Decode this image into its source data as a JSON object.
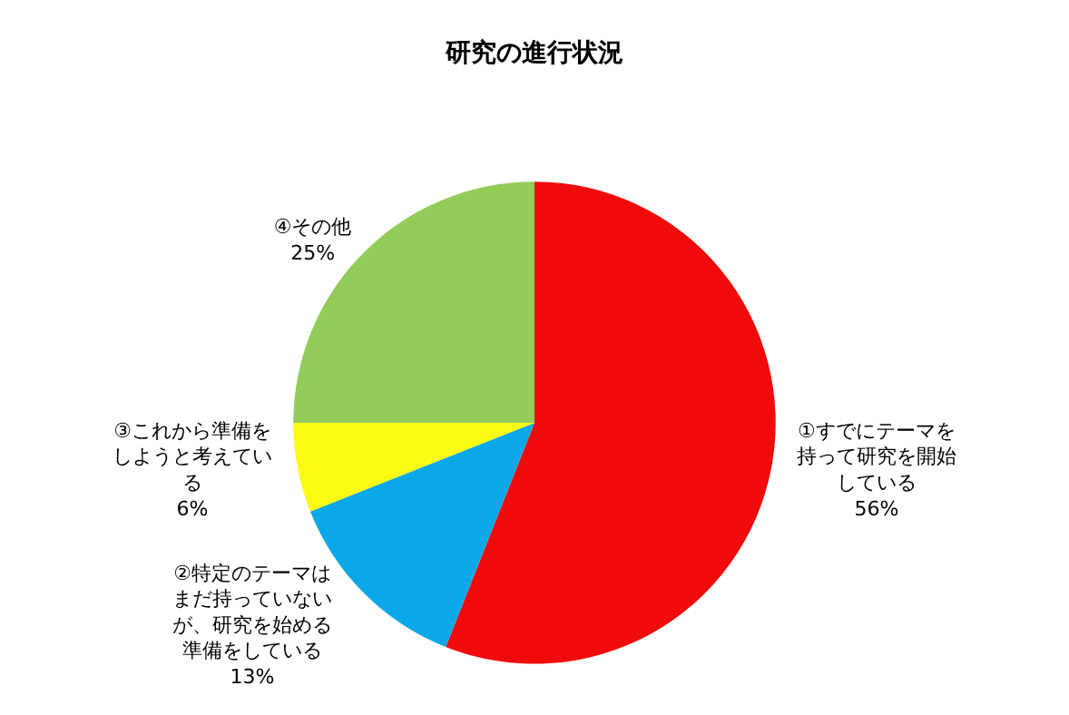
{
  "chart_data": {
    "type": "pie",
    "title": "研究の進行状況",
    "categories": [
      "①すでにテーマを持って研究を開始している",
      "②特定のテーマはまだ持っていないが、研究を始める準備をしている",
      "③これから準備をしようと考えている",
      "④その他"
    ],
    "values": [
      56,
      13,
      6,
      25
    ],
    "value_labels": [
      "56%",
      "13%",
      "6%",
      "25%"
    ],
    "colors": [
      "#f00a0a",
      "#0aa8e8",
      "#fafa14",
      "#92cd5a"
    ],
    "legend": false
  }
}
